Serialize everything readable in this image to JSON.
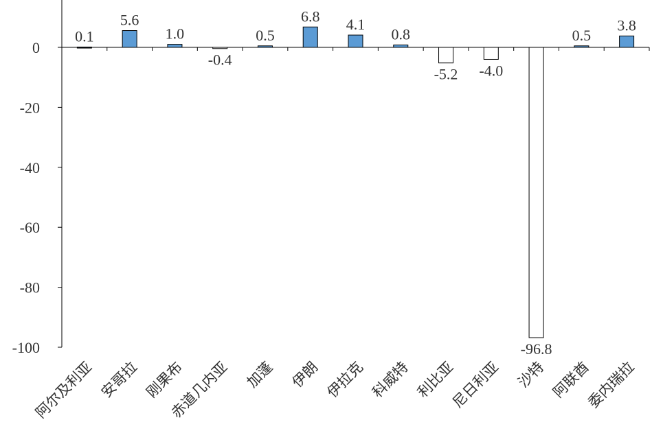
{
  "chart_data": {
    "type": "bar",
    "categories": [
      "阿尔及利亚",
      "安哥拉",
      "刚果布",
      "赤道几内亚",
      "加蓬",
      "伊朗",
      "伊拉克",
      "科威特",
      "利比亚",
      "尼日利亚",
      "沙特",
      "阿联酋",
      "委内瑞拉"
    ],
    "values": [
      0.1,
      5.6,
      1.0,
      -0.4,
      0.5,
      6.8,
      4.1,
      0.8,
      -5.2,
      -4.0,
      -96.8,
      0.5,
      3.8
    ],
    "data_labels": [
      "0.1",
      "5.6",
      "1.0",
      "-0.4",
      "0.5",
      "6.8",
      "4.1",
      "0.8",
      "-5.2",
      "-4.0",
      "-96.8",
      "0.5",
      "3.8"
    ],
    "y_ticks": [
      0,
      -20,
      -40,
      -60,
      -80,
      -100
    ],
    "y_tick_labels": [
      "0",
      "-20",
      "-40",
      "-60",
      "-80",
      "-100"
    ],
    "ylim": [
      -100,
      10
    ],
    "title": "",
    "xlabel": "",
    "ylabel": "",
    "grid": false,
    "legend": "none",
    "colors": {
      "positive_fill": "#5B9BD5",
      "negative_fill": "#FFFFFF",
      "bar_stroke": "#000000",
      "axis": "#000000",
      "text": "#333333"
    }
  }
}
